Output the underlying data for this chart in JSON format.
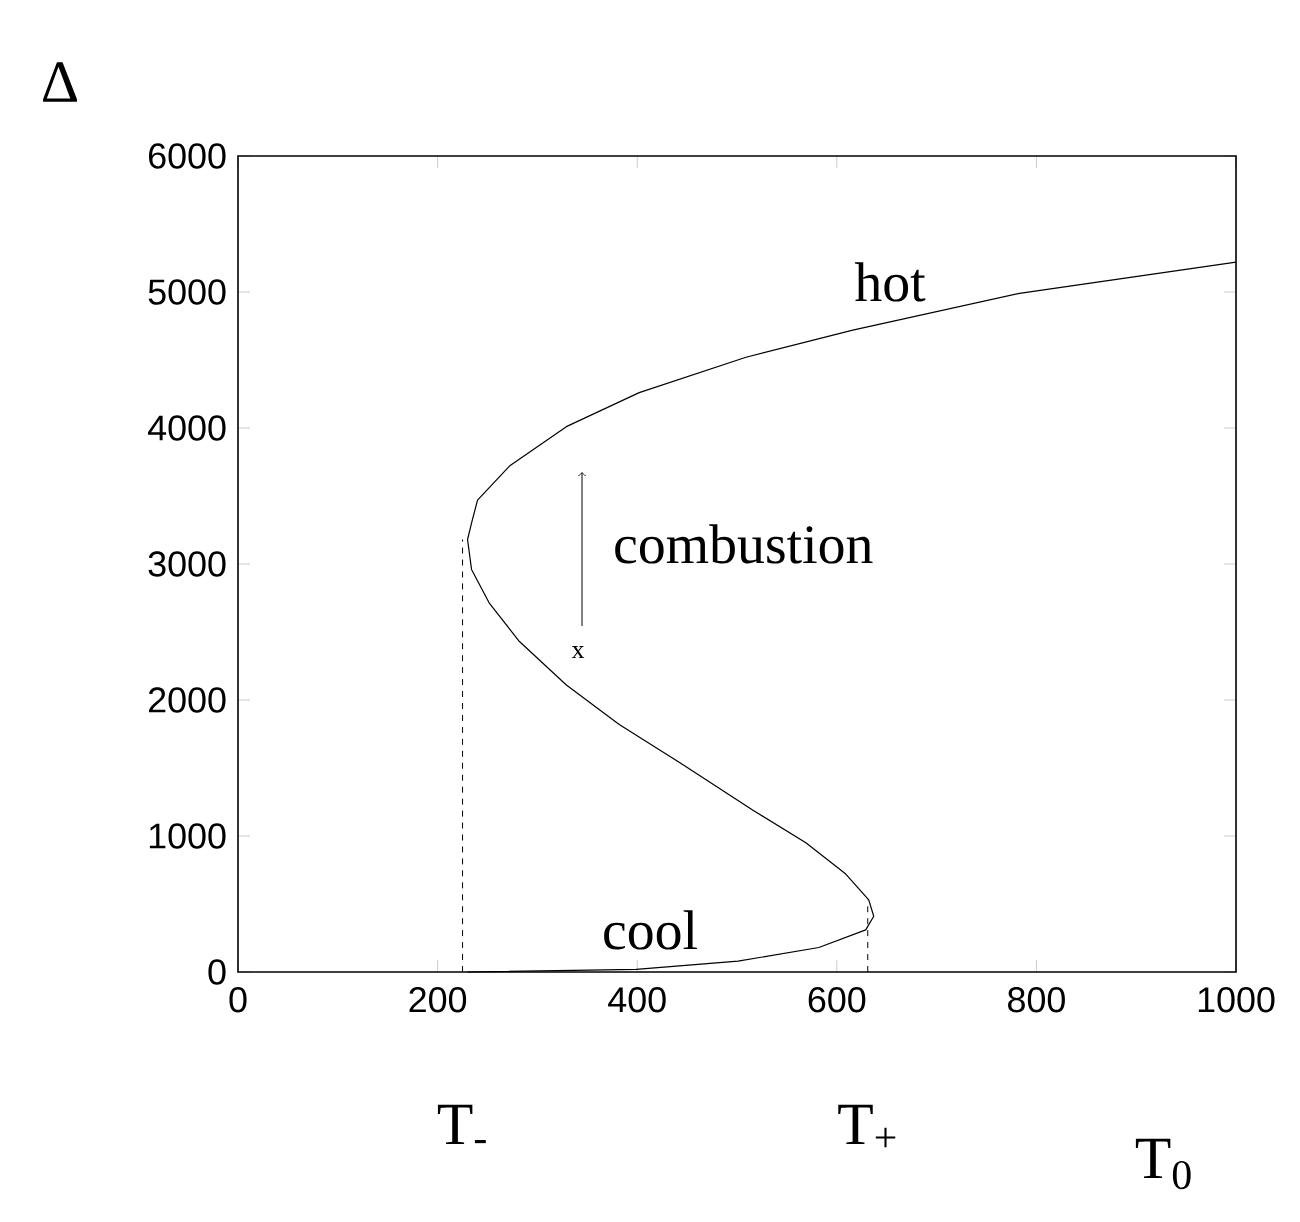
{
  "chart_data": {
    "type": "line",
    "xlabel": "T$_{0}$",
    "ylabel": "Δ",
    "xlim": [
      0,
      1000
    ],
    "ylim": [
      0,
      6000
    ],
    "xticks": [
      0,
      200,
      400,
      600,
      800,
      1000
    ],
    "yticks": [
      0,
      1000,
      2000,
      3000,
      4000,
      5000,
      6000
    ],
    "grid": false,
    "marker": "none",
    "series": [
      {
        "color": "#000000",
        "x": [
          230,
          399,
          501,
          582,
          629,
          637,
          632,
          609,
          569,
          516,
          449,
          382,
          329,
          282,
          252,
          234,
          230,
          234,
          240,
          272,
          329,
          402,
          509,
          616,
          783,
          1000
        ],
        "values": [
          0,
          20,
          80,
          180,
          310,
          410,
          530,
          720,
          950,
          1190,
          1510,
          1820,
          2110,
          2430,
          2710,
          2960,
          3180,
          3300,
          3470,
          3720,
          4010,
          4260,
          4520,
          4720,
          4990,
          5220
        ]
      }
    ],
    "ref_lines": [
      {
        "axis": "x",
        "value": 225,
        "label": "T$_{-}$",
        "line_style": "dashed"
      },
      {
        "axis": "x",
        "value": 631,
        "label": "T$_{+}$",
        "line_style": "dashed"
      }
    ],
    "annotations": [
      "hot",
      "cool",
      "combustion",
      "x"
    ]
  }
}
